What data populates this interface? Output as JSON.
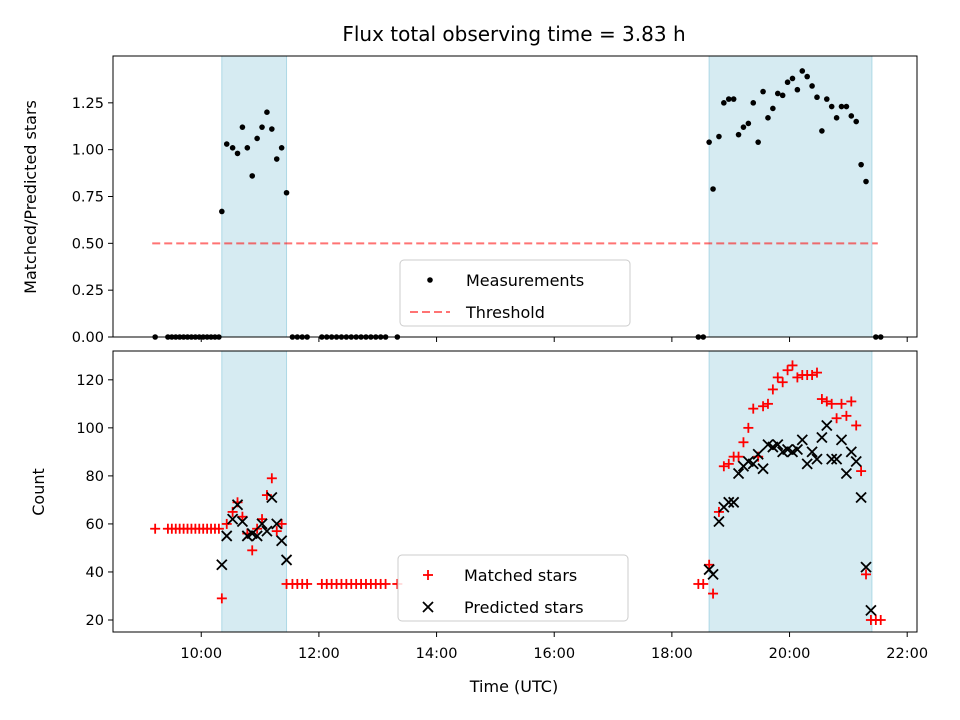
{
  "figure": {
    "title": "Flux total observing time = 3.83 h",
    "xlabel": "Time (UTC)"
  },
  "colors": {
    "observing_span": "#add8e6",
    "threshold": "#ff0000",
    "matched": "#ff0000",
    "predicted": "#000000",
    "measurements": "#000000"
  },
  "chart_data": [
    {
      "type": "scatter",
      "panel": "top",
      "ylabel": "Matched/Predicted stars",
      "ylim": [
        0,
        1.5
      ],
      "yticks": [
        0.0,
        0.25,
        0.5,
        0.75,
        1.0,
        1.25
      ],
      "ytick_labels": [
        "0.00",
        "0.25",
        "0.50",
        "0.75",
        "1.00",
        "1.25"
      ],
      "xlim": [
        "08:30",
        "22:10"
      ],
      "xticks": [
        "10:00",
        "12:00",
        "14:00",
        "16:00",
        "18:00",
        "20:00",
        "22:00"
      ],
      "shaded_spans": [
        [
          "10:21",
          "11:27"
        ],
        [
          "18:38",
          "21:24"
        ]
      ],
      "threshold": {
        "y": 0.5,
        "from": "09:10",
        "to": "21:30"
      },
      "legend": {
        "position": "lower-center",
        "entries": [
          "Measurements",
          "Threshold"
        ]
      },
      "series": [
        {
          "name": "Measurements",
          "marker": "dot",
          "points": [
            [
              "09:13",
              0
            ],
            [
              "09:26",
              0
            ],
            [
              "09:30",
              0
            ],
            [
              "09:34",
              0
            ],
            [
              "09:38",
              0
            ],
            [
              "09:42",
              0
            ],
            [
              "09:46",
              0
            ],
            [
              "09:50",
              0
            ],
            [
              "09:54",
              0
            ],
            [
              "09:58",
              0
            ],
            [
              "10:02",
              0
            ],
            [
              "10:06",
              0
            ],
            [
              "10:10",
              0
            ],
            [
              "10:14",
              0
            ],
            [
              "10:18",
              0
            ],
            [
              "10:21",
              0.67
            ],
            [
              "10:26",
              1.03
            ],
            [
              "10:32",
              1.01
            ],
            [
              "10:37",
              0.98
            ],
            [
              "10:42",
              1.12
            ],
            [
              "10:47",
              1.01
            ],
            [
              "10:52",
              0.86
            ],
            [
              "10:57",
              1.06
            ],
            [
              "11:02",
              1.12
            ],
            [
              "11:07",
              1.2
            ],
            [
              "11:12",
              1.11
            ],
            [
              "11:17",
              0.95
            ],
            [
              "11:22",
              1.01
            ],
            [
              "11:27",
              0.77
            ],
            [
              "11:33",
              0
            ],
            [
              "11:38",
              0
            ],
            [
              "11:43",
              0
            ],
            [
              "11:48",
              0
            ],
            [
              "12:03",
              0
            ],
            [
              "12:08",
              0
            ],
            [
              "12:13",
              0
            ],
            [
              "12:18",
              0
            ],
            [
              "12:23",
              0
            ],
            [
              "12:28",
              0
            ],
            [
              "12:33",
              0
            ],
            [
              "12:38",
              0
            ],
            [
              "12:43",
              0
            ],
            [
              "12:48",
              0
            ],
            [
              "12:53",
              0
            ],
            [
              "12:58",
              0
            ],
            [
              "13:03",
              0
            ],
            [
              "13:08",
              0
            ],
            [
              "13:20",
              0
            ],
            [
              "18:27",
              0
            ],
            [
              "18:32",
              0
            ],
            [
              "18:38",
              1.04
            ],
            [
              "18:42",
              0.79
            ],
            [
              "18:48",
              1.07
            ],
            [
              "18:53",
              1.25
            ],
            [
              "18:58",
              1.27
            ],
            [
              "19:03",
              1.27
            ],
            [
              "19:08",
              1.08
            ],
            [
              "19:13",
              1.12
            ],
            [
              "19:18",
              1.14
            ],
            [
              "19:23",
              1.25
            ],
            [
              "19:28",
              1.04
            ],
            [
              "19:33",
              1.31
            ],
            [
              "19:38",
              1.17
            ],
            [
              "19:43",
              1.22
            ],
            [
              "19:48",
              1.3
            ],
            [
              "19:53",
              1.29
            ],
            [
              "19:58",
              1.36
            ],
            [
              "20:03",
              1.38
            ],
            [
              "20:08",
              1.32
            ],
            [
              "20:13",
              1.42
            ],
            [
              "20:18",
              1.39
            ],
            [
              "20:23",
              1.34
            ],
            [
              "20:28",
              1.28
            ],
            [
              "20:33",
              1.1
            ],
            [
              "20:38",
              1.27
            ],
            [
              "20:43",
              1.23
            ],
            [
              "20:48",
              1.17
            ],
            [
              "20:53",
              1.23
            ],
            [
              "20:58",
              1.23
            ],
            [
              "21:03",
              1.18
            ],
            [
              "21:08",
              1.15
            ],
            [
              "21:13",
              0.92
            ],
            [
              "21:18",
              0.83
            ],
            [
              "21:28",
              0
            ],
            [
              "21:33",
              0
            ]
          ]
        }
      ]
    },
    {
      "type": "scatter",
      "panel": "bottom",
      "ylabel": "Count",
      "ylim": [
        15,
        132
      ],
      "yticks": [
        20,
        40,
        60,
        80,
        100,
        120
      ],
      "xlim": [
        "08:30",
        "22:10"
      ],
      "xticks": [
        "10:00",
        "12:00",
        "14:00",
        "16:00",
        "18:00",
        "20:00",
        "22:00"
      ],
      "shaded_spans": [
        [
          "10:21",
          "11:27"
        ],
        [
          "18:38",
          "21:24"
        ]
      ],
      "legend": {
        "position": "lower-center",
        "entries": [
          "Matched stars",
          "Predicted stars"
        ]
      },
      "series": [
        {
          "name": "Matched stars",
          "marker": "plus",
          "points": [
            [
              "09:13",
              58
            ],
            [
              "09:26",
              58
            ],
            [
              "09:30",
              58
            ],
            [
              "09:34",
              58
            ],
            [
              "09:38",
              58
            ],
            [
              "09:42",
              58
            ],
            [
              "09:46",
              58
            ],
            [
              "09:50",
              58
            ],
            [
              "09:54",
              58
            ],
            [
              "09:58",
              58
            ],
            [
              "10:02",
              58
            ],
            [
              "10:06",
              58
            ],
            [
              "10:10",
              58
            ],
            [
              "10:14",
              58
            ],
            [
              "10:18",
              58
            ],
            [
              "10:21",
              29
            ],
            [
              "10:26",
              60
            ],
            [
              "10:32",
              65
            ],
            [
              "10:37",
              69
            ],
            [
              "10:42",
              63
            ],
            [
              "10:47",
              56
            ],
            [
              "10:52",
              49
            ],
            [
              "10:57",
              58
            ],
            [
              "11:02",
              62
            ],
            [
              "11:07",
              72
            ],
            [
              "11:12",
              79
            ],
            [
              "11:17",
              57
            ],
            [
              "11:22",
              60
            ],
            [
              "11:27",
              35
            ],
            [
              "11:33",
              35
            ],
            [
              "11:38",
              35
            ],
            [
              "11:43",
              35
            ],
            [
              "11:48",
              35
            ],
            [
              "12:03",
              35
            ],
            [
              "12:08",
              35
            ],
            [
              "12:13",
              35
            ],
            [
              "12:18",
              35
            ],
            [
              "12:23",
              35
            ],
            [
              "12:28",
              35
            ],
            [
              "12:33",
              35
            ],
            [
              "12:38",
              35
            ],
            [
              "12:43",
              35
            ],
            [
              "12:48",
              35
            ],
            [
              "12:53",
              35
            ],
            [
              "12:58",
              35
            ],
            [
              "13:03",
              35
            ],
            [
              "13:08",
              35
            ],
            [
              "13:20",
              35
            ],
            [
              "18:27",
              35
            ],
            [
              "18:32",
              35
            ],
            [
              "18:38",
              43
            ],
            [
              "18:42",
              31
            ],
            [
              "18:48",
              65
            ],
            [
              "18:53",
              84
            ],
            [
              "18:58",
              85
            ],
            [
              "19:03",
              88
            ],
            [
              "19:08",
              88
            ],
            [
              "19:13",
              94
            ],
            [
              "19:18",
              100
            ],
            [
              "19:23",
              108
            ],
            [
              "19:28",
              88
            ],
            [
              "19:33",
              109
            ],
            [
              "19:38",
              110
            ],
            [
              "19:43",
              116
            ],
            [
              "19:48",
              121
            ],
            [
              "19:53",
              119
            ],
            [
              "19:58",
              124
            ],
            [
              "20:03",
              126
            ],
            [
              "20:08",
              121
            ],
            [
              "20:13",
              122
            ],
            [
              "20:18",
              122
            ],
            [
              "20:23",
              122
            ],
            [
              "20:28",
              123
            ],
            [
              "20:33",
              112
            ],
            [
              "20:38",
              111
            ],
            [
              "20:43",
              110
            ],
            [
              "20:48",
              104
            ],
            [
              "20:53",
              110
            ],
            [
              "20:58",
              105
            ],
            [
              "21:03",
              111
            ],
            [
              "21:08",
              101
            ],
            [
              "21:13",
              82
            ],
            [
              "21:18",
              39
            ],
            [
              "21:23",
              20
            ],
            [
              "21:28",
              20
            ],
            [
              "21:33",
              20
            ]
          ]
        },
        {
          "name": "Predicted stars",
          "marker": "x",
          "points": [
            [
              "10:21",
              43
            ],
            [
              "10:26",
              55
            ],
            [
              "10:32",
              62
            ],
            [
              "10:37",
              68
            ],
            [
              "10:42",
              61
            ],
            [
              "10:47",
              55
            ],
            [
              "10:52",
              56
            ],
            [
              "10:57",
              55
            ],
            [
              "11:02",
              60
            ],
            [
              "11:07",
              57
            ],
            [
              "11:12",
              71
            ],
            [
              "11:17",
              60
            ],
            [
              "11:22",
              53
            ],
            [
              "11:27",
              45
            ],
            [
              "18:38",
              41
            ],
            [
              "18:42",
              39
            ],
            [
              "18:48",
              61
            ],
            [
              "18:53",
              67
            ],
            [
              "18:58",
              69
            ],
            [
              "19:03",
              69
            ],
            [
              "19:08",
              81
            ],
            [
              "19:13",
              84
            ],
            [
              "19:18",
              86
            ],
            [
              "19:23",
              85
            ],
            [
              "19:28",
              89
            ],
            [
              "19:33",
              83
            ],
            [
              "19:38",
              93
            ],
            [
              "19:43",
              92
            ],
            [
              "19:48",
              93
            ],
            [
              "19:53",
              90
            ],
            [
              "19:58",
              91
            ],
            [
              "20:03",
              90
            ],
            [
              "20:08",
              91
            ],
            [
              "20:13",
              95
            ],
            [
              "20:18",
              85
            ],
            [
              "20:23",
              90
            ],
            [
              "20:28",
              87
            ],
            [
              "20:33",
              96
            ],
            [
              "20:38",
              101
            ],
            [
              "20:43",
              87
            ],
            [
              "20:48",
              87
            ],
            [
              "20:53",
              95
            ],
            [
              "20:58",
              81
            ],
            [
              "21:03",
              90
            ],
            [
              "21:08",
              86
            ],
            [
              "21:13",
              71
            ],
            [
              "21:18",
              42
            ],
            [
              "21:23",
              24
            ]
          ]
        }
      ]
    }
  ]
}
